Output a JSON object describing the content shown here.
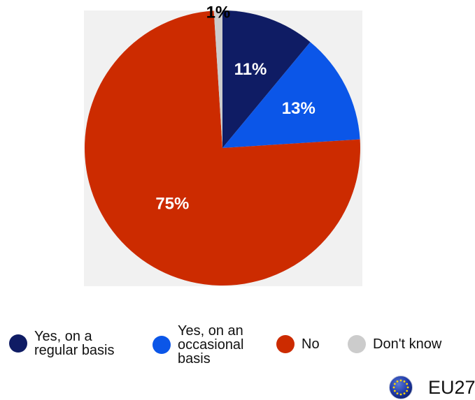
{
  "chart_data": {
    "type": "pie",
    "slices": [
      {
        "label": "Yes, on a\nregular basis",
        "value": 11,
        "display": "11%",
        "color": "#0f1c64"
      },
      {
        "label": "Yes, on an\noccasional\nbasis",
        "value": 13,
        "display": "13%",
        "color": "#0b56e8"
      },
      {
        "label": "No",
        "value": 75,
        "display": "75%",
        "color": "#cc2b00"
      },
      {
        "label": "Don't know",
        "value": 1,
        "display": "1%",
        "color": "#cccccc"
      }
    ],
    "legend": [
      {
        "label": "Yes, on a\nregular basis",
        "color": "#0f1c64"
      },
      {
        "label": "Yes, on an\noccasional\nbasis",
        "color": "#0b56e8"
      },
      {
        "label": "No",
        "color": "#cc2b00"
      },
      {
        "label": "Don't know",
        "color": "#cccccc"
      }
    ]
  },
  "badge": {
    "label": "EU27",
    "icon": "eu-flag-icon"
  }
}
